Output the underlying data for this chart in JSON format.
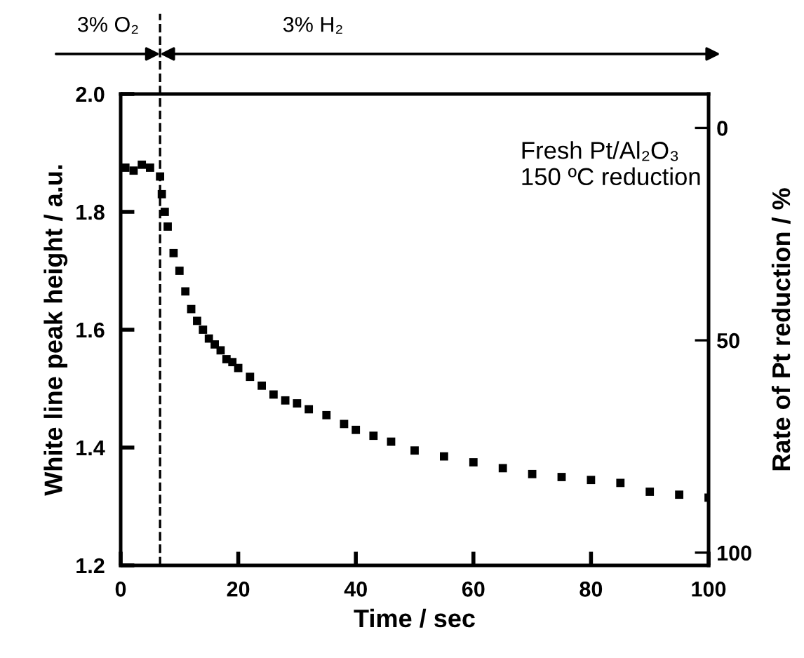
{
  "chart_data": {
    "type": "scatter",
    "xlabel": "Time / sec",
    "ylabel": "White line peak height / a.u.",
    "y2label": "Rate of Pt reduction / %",
    "x": [
      0.8,
      2.2,
      3.6,
      5,
      6.7,
      7,
      7.5,
      8,
      9,
      10,
      11,
      12,
      13,
      14,
      15,
      16,
      17,
      18,
      19,
      20,
      22,
      24,
      26,
      28,
      30,
      32,
      35,
      38,
      40,
      43,
      46,
      50,
      55,
      60,
      65,
      70,
      75,
      80,
      85,
      90,
      95,
      100
    ],
    "values": [
      1.875,
      1.87,
      1.88,
      1.875,
      1.86,
      1.83,
      1.8,
      1.775,
      1.73,
      1.7,
      1.665,
      1.635,
      1.615,
      1.6,
      1.585,
      1.575,
      1.565,
      1.55,
      1.545,
      1.535,
      1.52,
      1.505,
      1.49,
      1.48,
      1.475,
      1.465,
      1.455,
      1.44,
      1.43,
      1.42,
      1.41,
      1.395,
      1.385,
      1.375,
      1.365,
      1.355,
      1.35,
      1.345,
      1.34,
      1.325,
      1.32,
      1.315
    ],
    "color": "#000000",
    "marker": "square",
    "xlim": [
      0,
      100
    ],
    "xticks": [
      0,
      20,
      40,
      60,
      80,
      100
    ],
    "ylim": [
      1.2,
      2.0
    ],
    "yticks": [
      1.2,
      1.4,
      1.6,
      1.8,
      {
        "value": 2,
        "label": "2.0"
      }
    ],
    "y2lim": [
      103,
      -8
    ],
    "y2ticks": [
      0,
      50,
      100
    ],
    "ref_lines": [
      {
        "axis": "x",
        "value": 6.7,
        "line_style": "dashed",
        "color": "#000000"
      }
    ],
    "annotations": [
      "3% O₂",
      "3% H₂",
      "Fresh Pt/Al₂O₃\n150 ºC reduction"
    ],
    "grid": false
  }
}
